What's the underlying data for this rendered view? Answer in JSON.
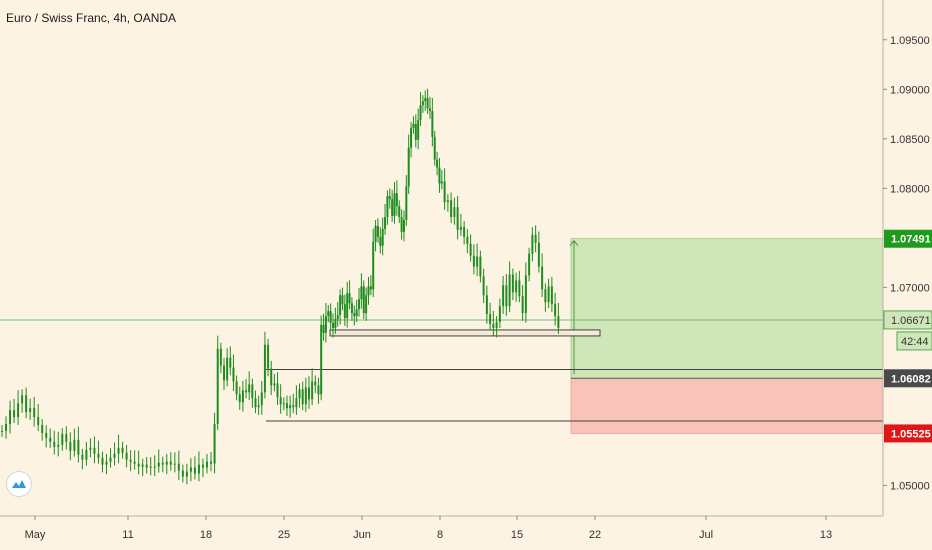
{
  "header": {
    "title": "Euro / Swiss Franc, 4h, OANDA"
  },
  "colors": {
    "background": "#fdf3e3",
    "candle": "#1e8c1e",
    "target_zone": "#cfe6b8",
    "stop_zone": "#f9c3b9",
    "target_tag": "#1e9b1e",
    "entry_tag": "#4a4a4a",
    "stop_tag": "#e01616"
  },
  "chart_data": {
    "type": "candlestick",
    "title": "Euro / Swiss Franc, 4h, OANDA",
    "x_ticks": [
      "May",
      "11",
      "18",
      "25",
      "Jun",
      "8",
      "15",
      "22",
      "Jul",
      "13"
    ],
    "y_ticks": [
      "1.09500",
      "1.09000",
      "1.08500",
      "1.08000",
      "1.07000",
      "1.05000"
    ],
    "ylim": [
      1.0455,
      1.0975
    ],
    "price_tags": {
      "target": "1.07491",
      "current": "1.06671",
      "countdown": "42:44",
      "entry": "1.06082",
      "stop": "1.05525"
    },
    "levels": [
      1.0617,
      1.0565
    ],
    "close_path": [
      [
        1.0555,
        1.0562,
        1.0576,
        1.0569,
        1.0583,
        1.0591,
        1.0574,
        1.0578,
        1.0569,
        1.0561,
        1.0553,
        1.0548,
        1.0544,
        1.0539,
        1.0541,
        1.0552,
        1.0544,
        1.0535,
        1.0546,
        1.0531,
        1.0526,
        1.0536,
        1.0538,
        1.0532,
        1.0528,
        1.0521,
        1.0524,
        1.0528,
        1.0532,
        1.0538,
        1.0533,
        1.0526,
        1.0524,
        1.0522,
        1.0519,
        1.0521,
        1.0518,
        1.0519,
        1.0519,
        1.0523,
        1.0521,
        1.0524,
        1.0521,
        1.0522,
        1.0515,
        1.0509,
        1.0514,
        1.0518,
        1.0512,
        1.0521,
        1.0518,
        1.0524,
        1.0522
      ],
      [
        1.0562,
        1.0638,
        1.0621,
        1.0606,
        1.0629,
        1.0619,
        1.0605,
        1.0592,
        1.0584,
        1.0596,
        1.0594,
        1.0602,
        1.0588,
        1.0579,
        1.0581,
        1.0594,
        1.0642,
        1.0618,
        1.0601,
        1.0603,
        1.0589,
        1.0582,
        1.0583,
        1.0578,
        1.0581,
        1.0579,
        1.0588,
        1.0597,
        1.0582,
        1.0599,
        1.0587,
        1.0605,
        1.0601,
        1.0592
      ],
      [
        1.0662,
        1.0654,
        1.0671,
        1.0676,
        1.0664,
        1.0659,
        1.0668,
        1.0672,
        1.0692,
        1.0683,
        1.0669,
        1.0694,
        1.0684,
        1.0674,
        1.0671,
        1.0678,
        1.0688,
        1.0701,
        1.0674,
        1.0692,
        1.0701,
        1.0698,
        1.0746,
        1.0762,
        1.0751,
        1.0742,
        1.0759,
        1.0771,
        1.0792,
        1.0789,
        1.0772,
        1.0795,
        1.0782,
        1.0771,
        1.0756,
        1.0768,
        1.0802,
        1.0841,
        1.0861,
        1.0865,
        1.0849,
        1.0869,
        1.0884,
        1.0888,
        1.0891,
        1.0881,
        1.0878,
        1.0852,
        1.0829,
        1.0821,
        1.0805,
        1.0807
      ],
      [
        1.0786,
        1.0788,
        1.0771,
        1.0781,
        1.0758,
        1.0761,
        1.0751,
        1.0744,
        1.0732,
        1.0721,
        1.0731,
        1.0711,
        1.0692,
        1.0673,
        1.0663,
        1.0659,
        1.0665,
        1.0681,
        1.0702,
        1.0681,
        1.0713,
        1.0695,
        1.0707,
        1.0691,
        1.0674,
        1.0712,
        1.0734,
        1.0753,
        1.0745,
        1.0721,
        1.0698,
        1.0685,
        1.0701,
        1.0683,
        1.0671,
        1.0659
      ]
    ]
  }
}
